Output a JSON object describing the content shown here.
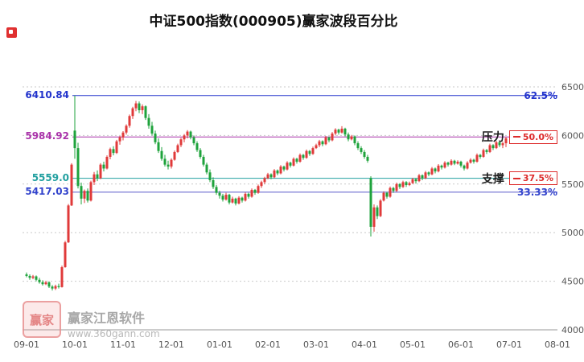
{
  "title_bar": {
    "title": "中证500指数(000905)赢家波段百分比"
  },
  "watermark": {
    "logo_text": "赢家",
    "name": "赢家江恩软件",
    "url": "www.360gann.com"
  },
  "chart_data": {
    "type": "candlestick",
    "title": "中证500指数(000905)赢家波段百分比",
    "ylim": [
      4000,
      6500
    ],
    "grid": true,
    "colors": {
      "up": "#e03a3a",
      "down": "#1fa33c",
      "grid": "#c9c9c9",
      "axis": "#999999",
      "tick_text": "#555555"
    },
    "y_ticks": [
      {
        "value": 6500,
        "label": "6500"
      },
      {
        "value": 6000,
        "label": "6000"
      },
      {
        "value": 5500,
        "label": "5500"
      },
      {
        "value": 5000,
        "label": "5000"
      },
      {
        "value": 4500,
        "label": "4500"
      },
      {
        "value": 4000,
        "label": "4000"
      }
    ],
    "x_ticks": [
      "09-01",
      "10-01",
      "11-01",
      "12-01",
      "01-01",
      "02-01",
      "03-01",
      "04-01",
      "05-01",
      "06-01",
      "07-01",
      "08-01"
    ],
    "levels": [
      {
        "price": 6410.84,
        "price_label": "6410.84",
        "pct_label": "62.5%",
        "style": "plain",
        "color": "#2233cc",
        "line_color": "#2233cc"
      },
      {
        "price": 5984.92,
        "price_label": "5984.92",
        "pct_label": "50.0%",
        "style": "boxed",
        "tag": "压力",
        "color": "#aa33aa",
        "line_color": "#aa33aa"
      },
      {
        "price": 5559.0,
        "price_label": "5559.0",
        "pct_label": "37.5%",
        "style": "boxed",
        "tag": "支撑",
        "color": "#22a0a0",
        "line_color": "#22a0a0"
      },
      {
        "price": 5417.03,
        "price_label": "5417.03",
        "pct_label": "33.33%",
        "style": "plain",
        "color": "#3344cc",
        "line_color": "#5c5ccc"
      }
    ],
    "candles": [
      [
        4570,
        4590,
        4540,
        4555
      ],
      [
        4555,
        4570,
        4515,
        4535
      ],
      [
        4535,
        4565,
        4520,
        4550
      ],
      [
        4550,
        4560,
        4500,
        4515
      ],
      [
        4515,
        4535,
        4475,
        4490
      ],
      [
        4490,
        4510,
        4455,
        4470
      ],
      [
        4470,
        4505,
        4460,
        4488
      ],
      [
        4488,
        4500,
        4430,
        4445
      ],
      [
        4445,
        4460,
        4405,
        4425
      ],
      [
        4425,
        4465,
        4410,
        4450
      ],
      [
        4450,
        4475,
        4425,
        4440
      ],
      [
        4440,
        4660,
        4435,
        4645
      ],
      [
        4645,
        4915,
        4640,
        4900
      ],
      [
        4900,
        5295,
        4895,
        5280
      ],
      [
        5280,
        5715,
        5275,
        5700
      ],
      [
        6050,
        6411,
        5760,
        5870
      ],
      [
        5870,
        5925,
        5455,
        5480
      ],
      [
        5480,
        5515,
        5290,
        5350
      ],
      [
        5350,
        5445,
        5305,
        5430
      ],
      [
        5430,
        5455,
        5310,
        5330
      ],
      [
        5330,
        5535,
        5320,
        5520
      ],
      [
        5520,
        5625,
        5490,
        5600
      ],
      [
        5600,
        5640,
        5530,
        5560
      ],
      [
        5560,
        5715,
        5550,
        5700
      ],
      [
        5700,
        5730,
        5630,
        5660
      ],
      [
        5660,
        5795,
        5650,
        5780
      ],
      [
        5780,
        5875,
        5755,
        5860
      ],
      [
        5860,
        5890,
        5795,
        5820
      ],
      [
        5820,
        5955,
        5810,
        5940
      ],
      [
        5940,
        5995,
        5905,
        5980
      ],
      [
        5980,
        6045,
        5950,
        6030
      ],
      [
        6030,
        6115,
        6010,
        6100
      ],
      [
        6100,
        6215,
        6080,
        6200
      ],
      [
        6200,
        6295,
        6170,
        6280
      ],
      [
        6280,
        6355,
        6250,
        6330
      ],
      [
        6330,
        6350,
        6230,
        6260
      ],
      [
        6260,
        6320,
        6220,
        6300
      ],
      [
        6300,
        6310,
        6160,
        6180
      ],
      [
        6180,
        6220,
        6070,
        6100
      ],
      [
        6100,
        6140,
        6000,
        6020
      ],
      [
        6020,
        6050,
        5910,
        5930
      ],
      [
        5930,
        5970,
        5820,
        5840
      ],
      [
        5840,
        5880,
        5740,
        5760
      ],
      [
        5760,
        5800,
        5680,
        5700
      ],
      [
        5700,
        5740,
        5650,
        5680
      ],
      [
        5680,
        5765,
        5660,
        5750
      ],
      [
        5750,
        5845,
        5740,
        5830
      ],
      [
        5830,
        5915,
        5820,
        5900
      ],
      [
        5900,
        5975,
        5880,
        5960
      ],
      [
        5960,
        6015,
        5930,
        6000
      ],
      [
        6000,
        6055,
        5970,
        6040
      ],
      [
        6040,
        6050,
        5960,
        5980
      ],
      [
        5980,
        6000,
        5900,
        5920
      ],
      [
        5920,
        5940,
        5830,
        5850
      ],
      [
        5850,
        5870,
        5760,
        5780
      ],
      [
        5780,
        5800,
        5680,
        5700
      ],
      [
        5700,
        5720,
        5600,
        5620
      ],
      [
        5620,
        5650,
        5520,
        5540
      ],
      [
        5540,
        5570,
        5450,
        5470
      ],
      [
        5470,
        5490,
        5390,
        5410
      ],
      [
        5410,
        5430,
        5350,
        5380
      ],
      [
        5380,
        5400,
        5320,
        5340
      ],
      [
        5340,
        5410,
        5330,
        5390
      ],
      [
        5390,
        5400,
        5290,
        5310
      ],
      [
        5310,
        5370,
        5300,
        5350
      ],
      [
        5350,
        5360,
        5280,
        5300
      ],
      [
        5300,
        5375,
        5290,
        5360
      ],
      [
        5360,
        5370,
        5310,
        5330
      ],
      [
        5330,
        5415,
        5320,
        5400
      ],
      [
        5400,
        5410,
        5350,
        5370
      ],
      [
        5370,
        5455,
        5360,
        5440
      ],
      [
        5440,
        5450,
        5390,
        5410
      ],
      [
        5410,
        5495,
        5400,
        5480
      ],
      [
        5480,
        5535,
        5460,
        5520
      ],
      [
        5520,
        5575,
        5500,
        5560
      ],
      [
        5560,
        5615,
        5550,
        5600
      ],
      [
        5600,
        5610,
        5550,
        5570
      ],
      [
        5570,
        5655,
        5560,
        5640
      ],
      [
        5640,
        5650,
        5590,
        5610
      ],
      [
        5610,
        5695,
        5600,
        5680
      ],
      [
        5680,
        5690,
        5630,
        5650
      ],
      [
        5650,
        5735,
        5640,
        5720
      ],
      [
        5720,
        5730,
        5670,
        5690
      ],
      [
        5690,
        5775,
        5680,
        5760
      ],
      [
        5760,
        5770,
        5710,
        5730
      ],
      [
        5730,
        5815,
        5720,
        5800
      ],
      [
        5800,
        5810,
        5750,
        5770
      ],
      [
        5770,
        5855,
        5760,
        5840
      ],
      [
        5840,
        5850,
        5790,
        5810
      ],
      [
        5810,
        5885,
        5800,
        5870
      ],
      [
        5870,
        5915,
        5860,
        5900
      ],
      [
        5900,
        5955,
        5880,
        5940
      ],
      [
        5940,
        5950,
        5890,
        5910
      ],
      [
        5910,
        5995,
        5900,
        5980
      ],
      [
        5980,
        5990,
        5930,
        5950
      ],
      [
        5950,
        6035,
        5940,
        6020
      ],
      [
        6020,
        6075,
        6000,
        6060
      ],
      [
        6060,
        6070,
        6010,
        6030
      ],
      [
        6030,
        6095,
        6020,
        6070
      ],
      [
        6070,
        6080,
        5990,
        6010
      ],
      [
        6010,
        6030,
        5940,
        5960
      ],
      [
        5960,
        6005,
        5950,
        5990
      ],
      [
        5990,
        6000,
        5900,
        5920
      ],
      [
        5920,
        5940,
        5850,
        5870
      ],
      [
        5870,
        5890,
        5810,
        5830
      ],
      [
        5830,
        5850,
        5760,
        5780
      ],
      [
        5780,
        5800,
        5720,
        5740
      ],
      [
        5560,
        5580,
        4960,
        5060
      ],
      [
        5060,
        5290,
        5010,
        5260
      ],
      [
        5260,
        5280,
        5140,
        5170
      ],
      [
        5170,
        5345,
        5160,
        5330
      ],
      [
        5330,
        5425,
        5320,
        5410
      ],
      [
        5410,
        5420,
        5350,
        5370
      ],
      [
        5370,
        5475,
        5360,
        5460
      ],
      [
        5460,
        5470,
        5410,
        5430
      ],
      [
        5430,
        5515,
        5420,
        5500
      ],
      [
        5500,
        5510,
        5450,
        5470
      ],
      [
        5470,
        5535,
        5460,
        5520
      ],
      [
        5520,
        5530,
        5470,
        5490
      ],
      [
        5490,
        5525,
        5480,
        5510
      ],
      [
        5510,
        5565,
        5500,
        5550
      ],
      [
        5550,
        5560,
        5505,
        5530
      ],
      [
        5530,
        5605,
        5520,
        5590
      ],
      [
        5590,
        5600,
        5540,
        5560
      ],
      [
        5560,
        5635,
        5550,
        5620
      ],
      [
        5620,
        5630,
        5580,
        5600
      ],
      [
        5600,
        5675,
        5590,
        5660
      ],
      [
        5660,
        5670,
        5610,
        5630
      ],
      [
        5630,
        5705,
        5620,
        5690
      ],
      [
        5690,
        5700,
        5650,
        5670
      ],
      [
        5670,
        5735,
        5660,
        5720
      ],
      [
        5720,
        5730,
        5680,
        5700
      ],
      [
        5700,
        5755,
        5690,
        5740
      ],
      [
        5740,
        5750,
        5695,
        5710
      ],
      [
        5710,
        5745,
        5700,
        5730
      ],
      [
        5730,
        5740,
        5670,
        5690
      ],
      [
        5690,
        5700,
        5640,
        5660
      ],
      [
        5660,
        5735,
        5650,
        5720
      ],
      [
        5720,
        5765,
        5710,
        5750
      ],
      [
        5750,
        5760,
        5710,
        5730
      ],
      [
        5730,
        5815,
        5720,
        5800
      ],
      [
        5800,
        5810,
        5760,
        5780
      ],
      [
        5780,
        5865,
        5770,
        5850
      ],
      [
        5850,
        5860,
        5810,
        5830
      ],
      [
        5830,
        5915,
        5820,
        5900
      ],
      [
        5900,
        5910,
        5850,
        5870
      ],
      [
        5870,
        5945,
        5860,
        5930
      ],
      [
        5930,
        5940,
        5880,
        5900
      ],
      [
        5900,
        5935,
        5870,
        5920
      ],
      [
        5920,
        5985,
        5880,
        5970
      ]
    ]
  }
}
